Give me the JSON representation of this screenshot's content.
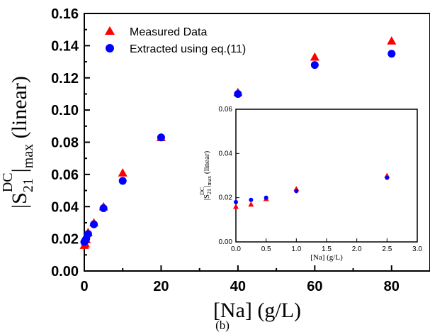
{
  "chart_data": [
    {
      "type": "scatter",
      "xlabel": "[Na] (g/L)",
      "ylabel_parts": {
        "pre": "|S",
        "sub": "21",
        "sup": "DC",
        "mid": "|",
        "sub2": "max",
        "post": " (linear)"
      },
      "xlim": [
        0,
        90
      ],
      "ylim": [
        0,
        0.16
      ],
      "xticks": [
        0,
        20,
        40,
        60,
        80
      ],
      "xtick_labels": [
        "0",
        "20",
        "40",
        "60",
        "80"
      ],
      "yticks": [
        0,
        0.02,
        0.04,
        0.06,
        0.08,
        0.1,
        0.12,
        0.14,
        0.16
      ],
      "ytick_labels": [
        "0.00",
        "0.02",
        "0.04",
        "0.06",
        "0.08",
        "0.10",
        "0.12",
        "0.14",
        "0.16"
      ],
      "legend_position": "top-left",
      "series": [
        {
          "name": "Measured Data",
          "marker": "triangle",
          "color": "#ff0000",
          "x": [
            0,
            0.25,
            0.5,
            1,
            2.5,
            5,
            10,
            20,
            40,
            60,
            80
          ],
          "y": [
            0.016,
            0.017,
            0.0195,
            0.024,
            0.03,
            0.04,
            0.061,
            0.083,
            0.111,
            0.133,
            0.143
          ]
        },
        {
          "name": "Extracted using eq.(11)",
          "marker": "circle",
          "color": "#0000ff",
          "x": [
            0,
            0.25,
            0.5,
            1,
            2.5,
            5,
            10,
            20,
            40,
            60,
            80
          ],
          "y": [
            0.018,
            0.019,
            0.02,
            0.023,
            0.029,
            0.039,
            0.056,
            0.083,
            0.11,
            0.128,
            0.135
          ]
        }
      ]
    },
    {
      "type": "scatter",
      "xlabel": "[Na] (g/L)",
      "ylabel_parts": {
        "pre": "|S",
        "sub": "21",
        "sup": "DC",
        "mid": "|",
        "sub2": "max",
        "post": " (linear)"
      },
      "xlim": [
        0,
        3.0
      ],
      "ylim": [
        0,
        0.06
      ],
      "xticks": [
        0,
        0.5,
        1,
        1.5,
        2,
        2.5,
        3
      ],
      "xtick_labels": [
        "0.0",
        "0.5",
        "1.0",
        "1.5",
        "2.0",
        "2.5",
        "3.0"
      ],
      "yticks": [
        0,
        0.02,
        0.04,
        0.06
      ],
      "ytick_labels": [
        "0.00",
        "0.02",
        "0.04",
        "0.06"
      ],
      "series": [
        {
          "marker": "triangle",
          "color": "#ff0000",
          "x": [
            0,
            0.25,
            0.5,
            1,
            2.5
          ],
          "y": [
            0.016,
            0.017,
            0.0195,
            0.024,
            0.03
          ]
        },
        {
          "marker": "circle",
          "color": "#0000ff",
          "x": [
            0,
            0.25,
            0.5,
            1,
            2.5
          ],
          "y": [
            0.018,
            0.019,
            0.02,
            0.023,
            0.029
          ]
        }
      ]
    }
  ],
  "panel_label": "(b)"
}
